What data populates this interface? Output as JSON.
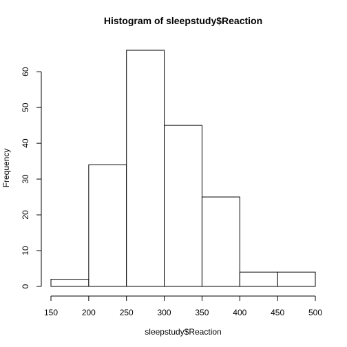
{
  "chart_data": {
    "type": "bar",
    "title": "Histogram of sleepstudy$Reaction",
    "xlabel": "sleepstudy$Reaction",
    "ylabel": "Frequency",
    "bins": [
      {
        "from": 150,
        "to": 200,
        "count": 2
      },
      {
        "from": 200,
        "to": 250,
        "count": 34
      },
      {
        "from": 250,
        "to": 300,
        "count": 66
      },
      {
        "from": 300,
        "to": 350,
        "count": 45
      },
      {
        "from": 350,
        "to": 400,
        "count": 25
      },
      {
        "from": 400,
        "to": 450,
        "count": 4
      },
      {
        "from": 450,
        "to": 500,
        "count": 4
      }
    ],
    "xticks": [
      "150",
      "200",
      "250",
      "300",
      "350",
      "400",
      "450",
      "500"
    ],
    "yticks": [
      "0",
      "10",
      "20",
      "30",
      "40",
      "50",
      "60"
    ],
    "xlim": [
      150,
      500
    ],
    "ylim": [
      0,
      66
    ],
    "grid": false,
    "bar_fill": "#ffffff",
    "bar_stroke": "#000000"
  }
}
